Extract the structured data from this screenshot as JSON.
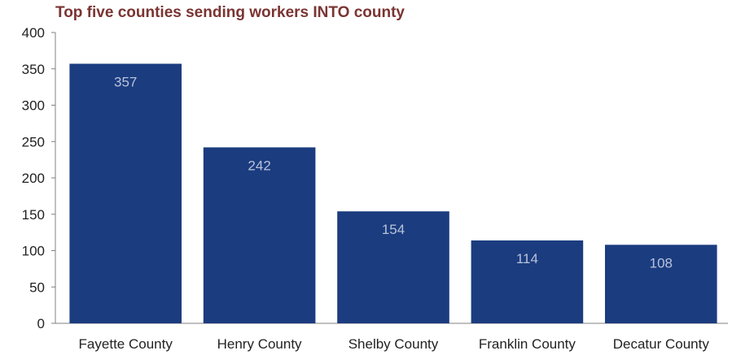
{
  "chart_data": {
    "type": "bar",
    "title": "Top five counties sending workers INTO county",
    "xlabel": "",
    "ylabel": "",
    "categories": [
      "Fayette County",
      "Henry County",
      "Shelby County",
      "Franklin County",
      "Decatur County"
    ],
    "values": [
      357,
      242,
      154,
      114,
      108
    ],
    "data_labels": [
      "357",
      "242",
      "154",
      "114",
      "108"
    ],
    "ylim": [
      0,
      400
    ],
    "yticks": [
      0,
      50,
      100,
      150,
      200,
      250,
      300,
      350,
      400
    ],
    "ytick_labels": [
      "0",
      "50",
      "100",
      "150",
      "200",
      "250",
      "300",
      "350",
      "400"
    ],
    "grid": false,
    "legend": "none",
    "colors": {
      "bar": "#1b3c7f",
      "title": "#7a3432",
      "axis": "#808080",
      "data_label": "#b9c3da"
    }
  }
}
